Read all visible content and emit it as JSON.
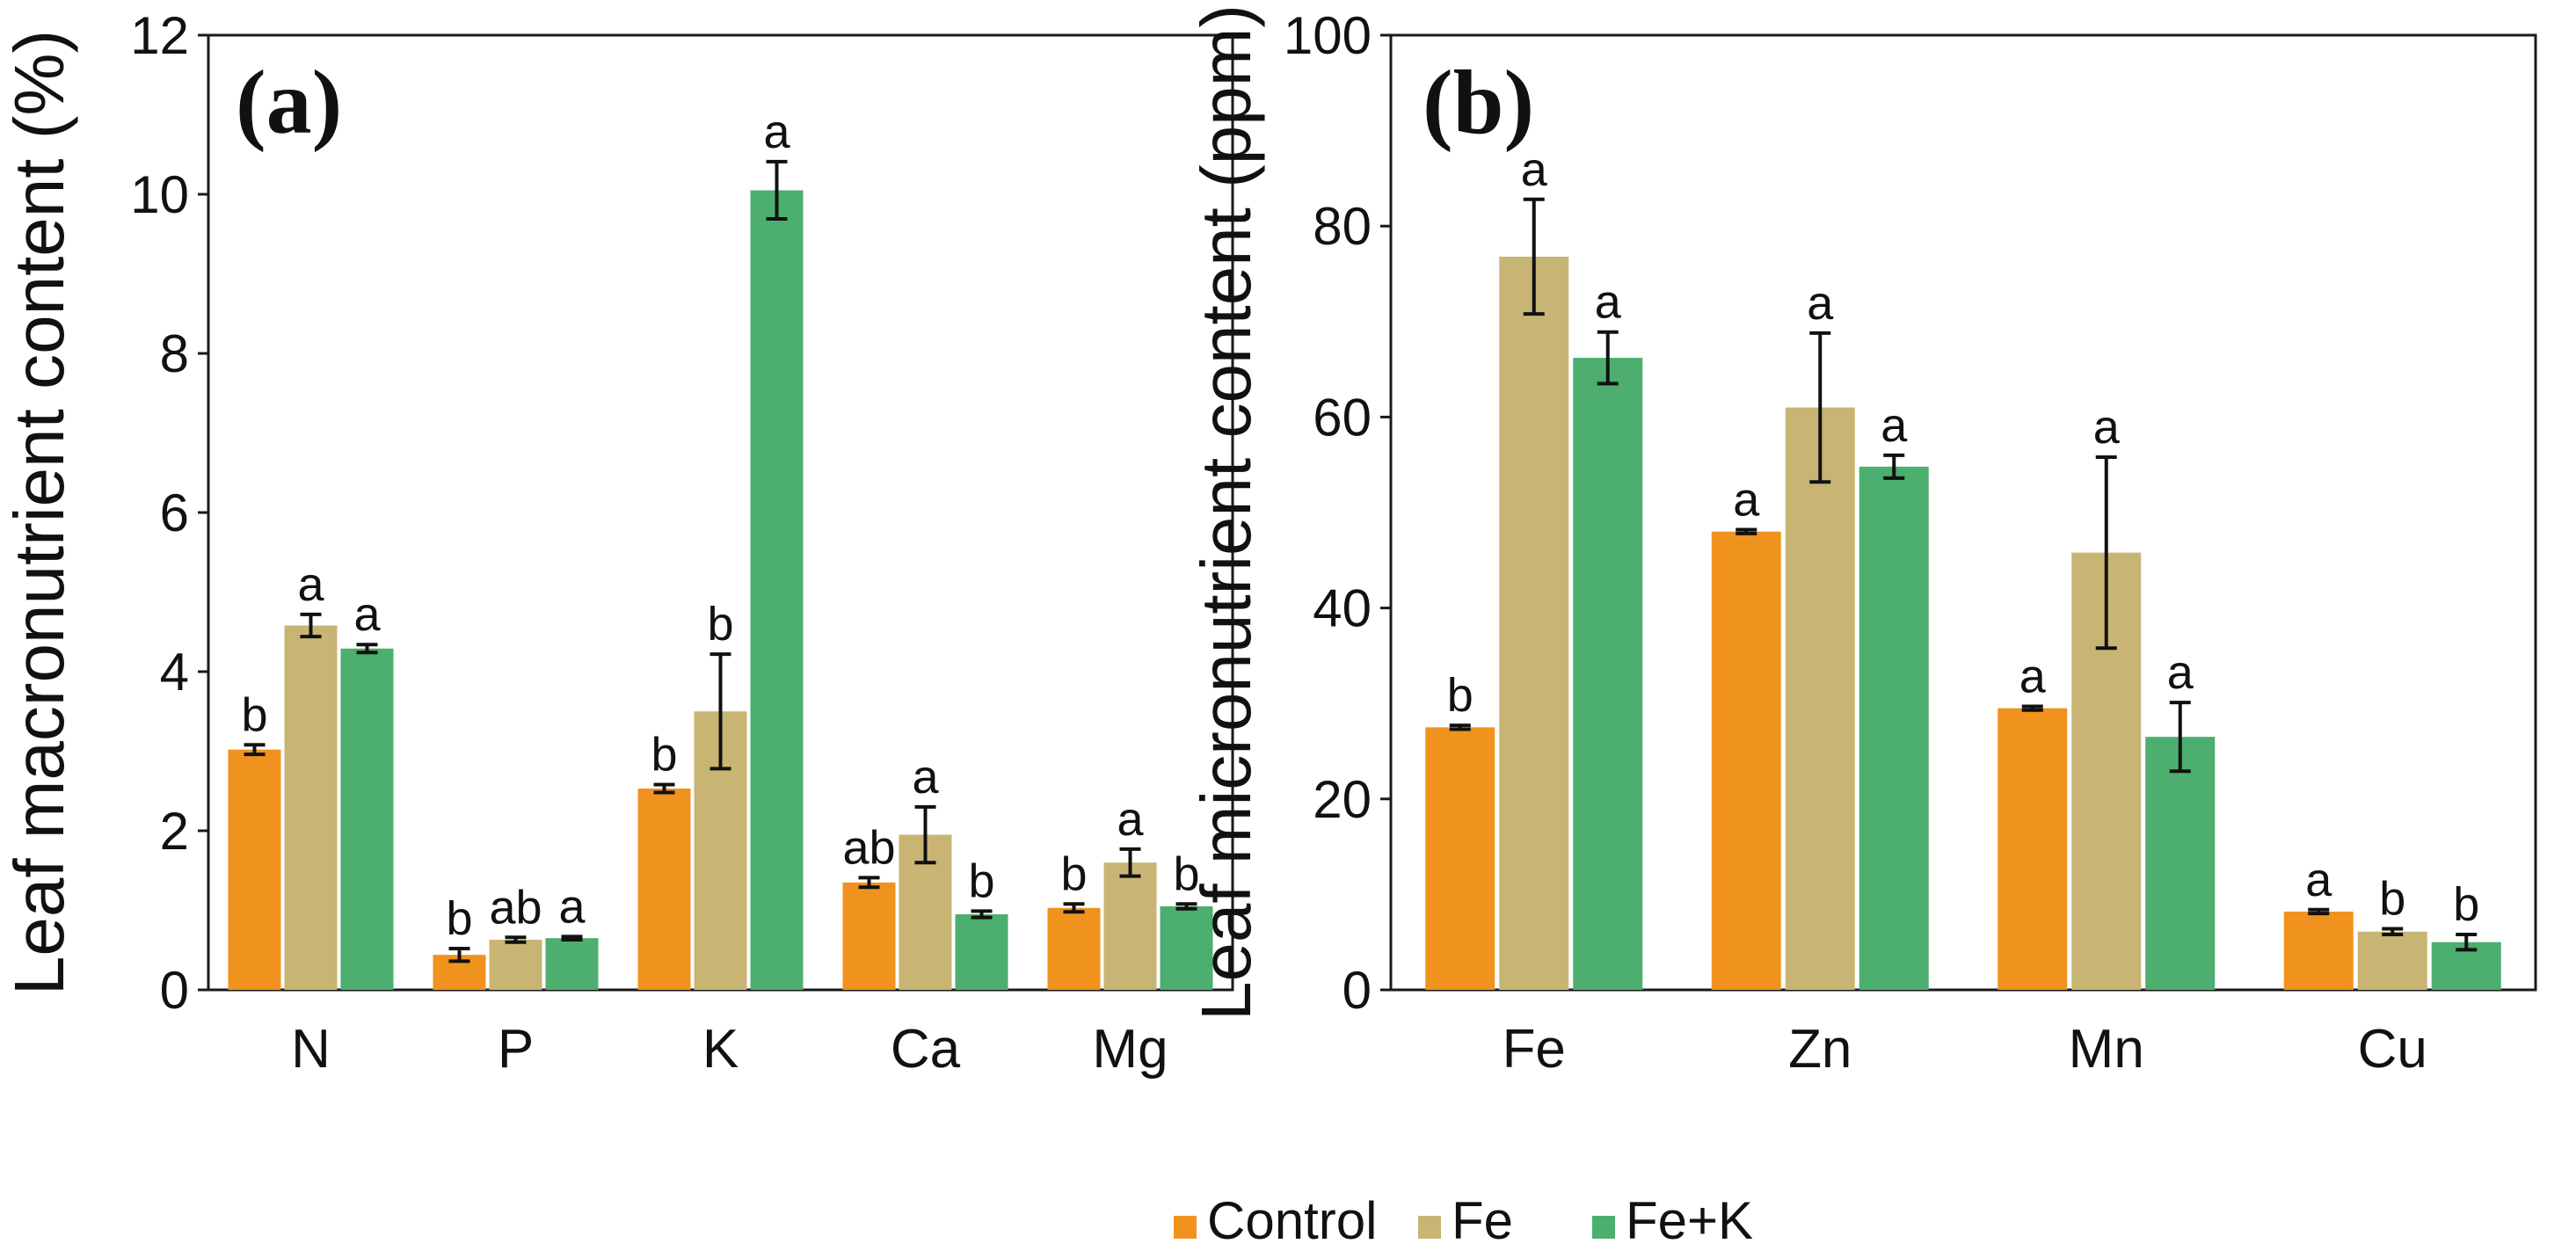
{
  "chart_data": [
    {
      "type": "bar",
      "panel_label": "(a)",
      "ylabel": "Leaf macronutrient content (%)",
      "xlabel": "",
      "ylim": [
        0,
        12
      ],
      "yticks": [
        0,
        2,
        4,
        6,
        8,
        10,
        12
      ],
      "categories": [
        "N",
        "P",
        "K",
        "Ca",
        "Mg"
      ],
      "series": [
        {
          "name": "Control",
          "values": [
            3.02,
            0.44,
            2.53,
            1.35,
            1.03
          ],
          "errors": [
            0.06,
            0.08,
            0.05,
            0.06,
            0.05
          ],
          "letters": [
            "b",
            "b",
            "b",
            "ab",
            "b"
          ]
        },
        {
          "name": "Fe",
          "values": [
            4.58,
            0.63,
            3.5,
            1.95,
            1.6
          ],
          "errors": [
            0.14,
            0.03,
            0.72,
            0.35,
            0.17
          ],
          "letters": [
            "a",
            "ab",
            "b",
            "a",
            "a"
          ]
        },
        {
          "name": "Fe+K",
          "values": [
            4.29,
            0.65,
            10.05,
            0.95,
            1.05
          ],
          "errors": [
            0.05,
            0.02,
            0.36,
            0.04,
            0.03
          ],
          "letters": [
            "a",
            "a",
            "a",
            "b",
            "b"
          ]
        }
      ]
    },
    {
      "type": "bar",
      "panel_label": "(b)",
      "ylabel": "Leaf micronutrient content (ppm)",
      "xlabel": "",
      "ylim": [
        0,
        100
      ],
      "yticks": [
        0,
        20,
        40,
        60,
        80,
        100
      ],
      "categories": [
        "Fe",
        "Zn",
        "Mn",
        "Cu"
      ],
      "series": [
        {
          "name": "Control",
          "values": [
            27.5,
            48.0,
            29.5,
            8.2
          ],
          "errors": [
            0.2,
            0.2,
            0.2,
            0.2
          ],
          "letters": [
            "b",
            "a",
            "a",
            "a"
          ]
        },
        {
          "name": "Fe",
          "values": [
            76.8,
            61.0,
            45.8,
            6.1
          ],
          "errors": [
            6.0,
            7.8,
            10.0,
            0.3
          ],
          "letters": [
            "a",
            "a",
            "a",
            "b"
          ]
        },
        {
          "name": "Fe+K",
          "values": [
            66.2,
            54.8,
            26.5,
            5.0
          ],
          "errors": [
            2.7,
            1.2,
            3.6,
            0.8
          ],
          "letters": [
            "a",
            "a",
            "a",
            "b"
          ]
        }
      ]
    }
  ],
  "legend": {
    "placement": "bottom-center",
    "items": [
      "Control",
      "Fe",
      "Fe+K"
    ]
  },
  "colors": {
    "Control": "#f0921e",
    "Fe": "#c8b574",
    "Fe+K": "#4cae6f"
  }
}
